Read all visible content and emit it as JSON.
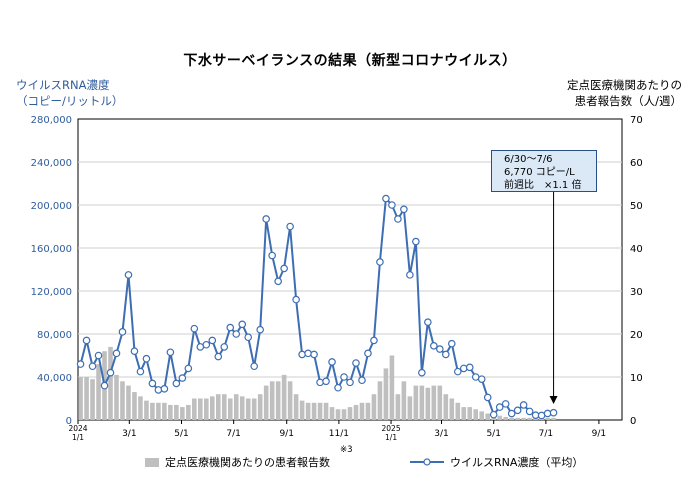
{
  "title": "下水サーベイランスの結果（新型コロナウイルス）",
  "left_axis_title": [
    "ウイルスRNA濃度",
    "（コピー/リットル）"
  ],
  "right_axis_title": [
    "定点医療機関あたりの",
    "患者報告数（人/週）"
  ],
  "callout": {
    "line1": "6/30〜7/6",
    "line2": "6,770 コピー/L",
    "line3": "前週比　×1.1 倍"
  },
  "note": "※3",
  "legend": {
    "bars": "定点医療機関あたりの患者報告数",
    "line": "ウイルスRNA濃度（平均）"
  },
  "colors": {
    "line": "#3d6eb3",
    "bar": "#bfbfbf",
    "axis_left_text": "#2f5c9c"
  },
  "chart_data": {
    "type": "bar+line",
    "x_start": "2024-01-01",
    "x_end": "2025-09-28",
    "x_ticks": [
      {
        "date": "2024-01-01",
        "label": [
          "2024",
          "1/1"
        ]
      },
      {
        "date": "2024-03-01",
        "label": [
          "3/1"
        ]
      },
      {
        "date": "2024-05-01",
        "label": [
          "5/1"
        ]
      },
      {
        "date": "2024-07-01",
        "label": [
          "7/1"
        ]
      },
      {
        "date": "2024-09-01",
        "label": [
          "9/1"
        ]
      },
      {
        "date": "2024-11-01",
        "label": [
          "11/1"
        ]
      },
      {
        "date": "2025-01-01",
        "label": [
          "2025",
          "1/1"
        ]
      },
      {
        "date": "2025-03-01",
        "label": [
          "3/1"
        ]
      },
      {
        "date": "2025-05-01",
        "label": [
          "5/1"
        ]
      },
      {
        "date": "2025-07-01",
        "label": [
          "7/1"
        ]
      },
      {
        "date": "2025-09-01",
        "label": [
          "9/1"
        ]
      }
    ],
    "y_left": {
      "min": 0,
      "max": 280000,
      "ticks": [
        "0",
        "40,000",
        "80,000",
        "120,000",
        "160,000",
        "200,000",
        "240,000",
        "280,000"
      ]
    },
    "y_right": {
      "min": 0,
      "max": 70,
      "ticks": [
        "0",
        "10",
        "20",
        "30",
        "40",
        "50",
        "60",
        "70"
      ]
    },
    "grid": true,
    "series": [
      {
        "name": "定点医療機関あたりの患者報告数",
        "type": "bar",
        "axis": "right",
        "weeks_start": "2024-01-01",
        "values": [
          10,
          10,
          9.5,
          13,
          16,
          17,
          10.5,
          9,
          8,
          6.5,
          5.5,
          4.5,
          4,
          4,
          4,
          3.5,
          3.5,
          3,
          3.5,
          5,
          5,
          5,
          5.5,
          6,
          6,
          5,
          6,
          5.5,
          5,
          5,
          6,
          8,
          9,
          9,
          10.5,
          9,
          6,
          4.5,
          4,
          4,
          4,
          4,
          3,
          2.5,
          2.5,
          3,
          3.5,
          4,
          4,
          6,
          9,
          12,
          15,
          6,
          9,
          5.5,
          8,
          8,
          7.5,
          8,
          8,
          6,
          5,
          4,
          3,
          3,
          2.5,
          2,
          1.5,
          1,
          1,
          0.7,
          0.5,
          0.5,
          0.5,
          0.5,
          0.5,
          0.5,
          0.5,
          0.5
        ]
      },
      {
        "name": "ウイルスRNA濃度（平均）",
        "type": "line",
        "axis": "left",
        "weeks_start": "2024-01-01",
        "values": [
          52000,
          74000,
          50000,
          60000,
          32000,
          44000,
          62000,
          82000,
          135000,
          64000,
          45000,
          57000,
          34000,
          28000,
          29000,
          63000,
          34000,
          39000,
          48000,
          85000,
          68000,
          70000,
          74000,
          59000,
          68000,
          86000,
          80000,
          89000,
          77000,
          50000,
          84000,
          187000,
          153000,
          129000,
          141000,
          180000,
          112000,
          61000,
          62000,
          61000,
          35000,
          36000,
          54000,
          30000,
          40000,
          35000,
          53000,
          37000,
          62000,
          74000,
          147000,
          206000,
          200000,
          187000,
          196000,
          135000,
          166000,
          44000,
          91000,
          69000,
          66000,
          61000,
          71000,
          45000,
          48000,
          49000,
          40000,
          38000,
          21000,
          5000,
          12000,
          15000,
          6000,
          9000,
          14000,
          8000,
          4500,
          4200,
          6100,
          6770
        ]
      }
    ]
  }
}
